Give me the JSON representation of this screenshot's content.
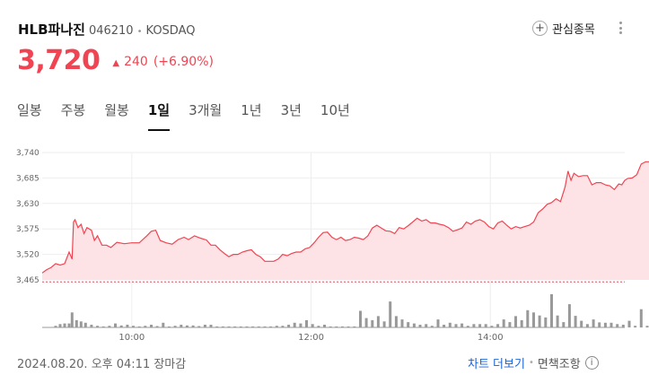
{
  "stock": {
    "name": "HLB파나진",
    "code": "046210",
    "separator": "•",
    "market": "KOSDAQ",
    "price": "3,720",
    "change_arrow": "▲",
    "change": "240",
    "change_pct": "(+6.90%)"
  },
  "watchlist": {
    "icon": "plus-icon",
    "label": "관심종목"
  },
  "tabs": [
    {
      "label": "일봉",
      "active": false
    },
    {
      "label": "주봉",
      "active": false
    },
    {
      "label": "월봉",
      "active": false
    },
    {
      "label": "1일",
      "active": true
    },
    {
      "label": "3개월",
      "active": false
    },
    {
      "label": "1년",
      "active": false
    },
    {
      "label": "3년",
      "active": false
    },
    {
      "label": "10년",
      "active": false
    }
  ],
  "chart_data": {
    "type": "area",
    "y_ticks": [
      "3,740",
      "3,685",
      "3,630",
      "3,575",
      "3,520",
      "3,465"
    ],
    "ylim": [
      3465,
      3740
    ],
    "x_ticks": [
      "10:00",
      "12:00",
      "14:00"
    ],
    "x_range_minutes": [
      540,
      930
    ],
    "prev_close": 3480,
    "price_points": [
      [
        540,
        3480
      ],
      [
        543,
        3487
      ],
      [
        546,
        3492
      ],
      [
        549,
        3500
      ],
      [
        552,
        3497
      ],
      [
        555,
        3500
      ],
      [
        558,
        3525
      ],
      [
        560,
        3510
      ],
      [
        561,
        3590
      ],
      [
        562,
        3595
      ],
      [
        564,
        3578
      ],
      [
        566,
        3585
      ],
      [
        568,
        3565
      ],
      [
        570,
        3578
      ],
      [
        573,
        3572
      ],
      [
        575,
        3550
      ],
      [
        577,
        3560
      ],
      [
        580,
        3540
      ],
      [
        583,
        3540
      ],
      [
        586,
        3535
      ],
      [
        590,
        3546
      ],
      [
        595,
        3543
      ],
      [
        600,
        3545
      ],
      [
        605,
        3545
      ],
      [
        610,
        3560
      ],
      [
        613,
        3570
      ],
      [
        616,
        3572
      ],
      [
        619,
        3550
      ],
      [
        623,
        3545
      ],
      [
        627,
        3542
      ],
      [
        631,
        3552
      ],
      [
        635,
        3557
      ],
      [
        638,
        3552
      ],
      [
        642,
        3560
      ],
      [
        646,
        3555
      ],
      [
        650,
        3551
      ],
      [
        653,
        3540
      ],
      [
        656,
        3540
      ],
      [
        659,
        3530
      ],
      [
        662,
        3522
      ],
      [
        665,
        3515
      ],
      [
        668,
        3520
      ],
      [
        671,
        3520
      ],
      [
        674,
        3525
      ],
      [
        677,
        3528
      ],
      [
        680,
        3530
      ],
      [
        683,
        3520
      ],
      [
        686,
        3515
      ],
      [
        689,
        3505
      ],
      [
        692,
        3505
      ],
      [
        695,
        3505
      ],
      [
        698,
        3510
      ],
      [
        701,
        3520
      ],
      [
        704,
        3517
      ],
      [
        707,
        3522
      ],
      [
        710,
        3525
      ],
      [
        713,
        3525
      ],
      [
        716,
        3532
      ],
      [
        719,
        3535
      ],
      [
        722,
        3545
      ],
      [
        725,
        3557
      ],
      [
        728,
        3567
      ],
      [
        731,
        3568
      ],
      [
        734,
        3557
      ],
      [
        737,
        3552
      ],
      [
        740,
        3557
      ],
      [
        743,
        3550
      ],
      [
        746,
        3552
      ],
      [
        749,
        3557
      ],
      [
        752,
        3555
      ],
      [
        755,
        3552
      ],
      [
        758,
        3560
      ],
      [
        761,
        3577
      ],
      [
        764,
        3583
      ],
      [
        767,
        3577
      ],
      [
        770,
        3571
      ],
      [
        773,
        3570
      ],
      [
        776,
        3565
      ],
      [
        779,
        3578
      ],
      [
        782,
        3575
      ],
      [
        785,
        3582
      ],
      [
        788,
        3590
      ],
      [
        791,
        3598
      ],
      [
        794,
        3592
      ],
      [
        797,
        3595
      ],
      [
        800,
        3588
      ],
      [
        803,
        3588
      ],
      [
        806,
        3585
      ],
      [
        809,
        3583
      ],
      [
        812,
        3578
      ],
      [
        815,
        3570
      ],
      [
        818,
        3573
      ],
      [
        821,
        3577
      ],
      [
        824,
        3590
      ],
      [
        827,
        3585
      ],
      [
        830,
        3592
      ],
      [
        833,
        3595
      ],
      [
        836,
        3590
      ],
      [
        839,
        3580
      ],
      [
        842,
        3575
      ],
      [
        845,
        3588
      ],
      [
        848,
        3592
      ],
      [
        851,
        3583
      ],
      [
        854,
        3575
      ],
      [
        857,
        3580
      ],
      [
        860,
        3577
      ],
      [
        863,
        3580
      ],
      [
        866,
        3583
      ],
      [
        869,
        3590
      ],
      [
        872,
        3610
      ],
      [
        875,
        3618
      ],
      [
        878,
        3628
      ],
      [
        881,
        3632
      ],
      [
        884,
        3640
      ],
      [
        887,
        3634
      ],
      [
        890,
        3665
      ],
      [
        892,
        3700
      ],
      [
        894,
        3680
      ],
      [
        896,
        3695
      ],
      [
        899,
        3688
      ],
      [
        902,
        3690
      ],
      [
        905,
        3690
      ],
      [
        908,
        3670
      ],
      [
        911,
        3675
      ],
      [
        914,
        3675
      ],
      [
        917,
        3670
      ],
      [
        920,
        3668
      ],
      [
        923,
        3660
      ],
      [
        926,
        3672
      ],
      [
        928,
        3670
      ],
      [
        930,
        3680
      ],
      [
        932,
        3684
      ],
      [
        935,
        3685
      ],
      [
        938,
        3692
      ],
      [
        941,
        3715
      ],
      [
        944,
        3720
      ],
      [
        947,
        3720
      ],
      [
        950,
        3720
      ]
    ],
    "volume_bars": [
      [
        549,
        0.05
      ],
      [
        552,
        0.1
      ],
      [
        555,
        0.12
      ],
      [
        558,
        0.12
      ],
      [
        560,
        0.45
      ],
      [
        563,
        0.22
      ],
      [
        566,
        0.18
      ],
      [
        569,
        0.14
      ],
      [
        573,
        0.08
      ],
      [
        577,
        0.05
      ],
      [
        581,
        0.03
      ],
      [
        585,
        0.05
      ],
      [
        589,
        0.12
      ],
      [
        593,
        0.06
      ],
      [
        597,
        0.08
      ],
      [
        601,
        0.05
      ],
      [
        605,
        0.03
      ],
      [
        609,
        0.05
      ],
      [
        613,
        0.08
      ],
      [
        617,
        0.04
      ],
      [
        621,
        0.14
      ],
      [
        625,
        0.03
      ],
      [
        629,
        0.05
      ],
      [
        633,
        0.08
      ],
      [
        637,
        0.06
      ],
      [
        641,
        0.06
      ],
      [
        645,
        0.04
      ],
      [
        649,
        0.08
      ],
      [
        653,
        0.08
      ],
      [
        657,
        0.03
      ],
      [
        661,
        0.03
      ],
      [
        665,
        0.03
      ],
      [
        669,
        0.03
      ],
      [
        673,
        0.03
      ],
      [
        677,
        0.03
      ],
      [
        681,
        0.03
      ],
      [
        685,
        0.03
      ],
      [
        689,
        0.03
      ],
      [
        693,
        0.03
      ],
      [
        697,
        0.05
      ],
      [
        701,
        0.05
      ],
      [
        705,
        0.08
      ],
      [
        709,
        0.14
      ],
      [
        713,
        0.12
      ],
      [
        717,
        0.22
      ],
      [
        721,
        0.1
      ],
      [
        725,
        0.05
      ],
      [
        729,
        0.08
      ],
      [
        733,
        0.03
      ],
      [
        737,
        0.03
      ],
      [
        741,
        0.03
      ],
      [
        745,
        0.03
      ],
      [
        749,
        0.03
      ],
      [
        753,
        0.5
      ],
      [
        757,
        0.28
      ],
      [
        761,
        0.22
      ],
      [
        765,
        0.34
      ],
      [
        769,
        0.18
      ],
      [
        773,
        0.78
      ],
      [
        777,
        0.34
      ],
      [
        781,
        0.24
      ],
      [
        785,
        0.16
      ],
      [
        789,
        0.12
      ],
      [
        793,
        0.08
      ],
      [
        797,
        0.1
      ],
      [
        801,
        0.05
      ],
      [
        805,
        0.24
      ],
      [
        809,
        0.08
      ],
      [
        813,
        0.14
      ],
      [
        817,
        0.1
      ],
      [
        821,
        0.12
      ],
      [
        825,
        0.05
      ],
      [
        829,
        0.1
      ],
      [
        833,
        0.1
      ],
      [
        837,
        0.1
      ],
      [
        841,
        0.05
      ],
      [
        845,
        0.1
      ],
      [
        849,
        0.24
      ],
      [
        853,
        0.16
      ],
      [
        857,
        0.34
      ],
      [
        861,
        0.22
      ],
      [
        865,
        0.52
      ],
      [
        869,
        0.45
      ],
      [
        873,
        0.36
      ],
      [
        877,
        0.3
      ],
      [
        881,
        1.0
      ],
      [
        885,
        0.36
      ],
      [
        889,
        0.16
      ],
      [
        893,
        0.7
      ],
      [
        897,
        0.35
      ],
      [
        901,
        0.2
      ],
      [
        905,
        0.1
      ],
      [
        909,
        0.24
      ],
      [
        913,
        0.15
      ],
      [
        917,
        0.14
      ],
      [
        921,
        0.14
      ],
      [
        925,
        0.1
      ],
      [
        929,
        0.08
      ],
      [
        933,
        0.2
      ],
      [
        937,
        0.05
      ],
      [
        941,
        0.55
      ],
      [
        945,
        0.05
      ]
    ],
    "colors": {
      "line": "#f04452",
      "fill": "#fde3e5",
      "grid": "#eeeeee",
      "prev_close": "#f04452",
      "volume": "#999999"
    }
  },
  "footer": {
    "timestamp": "2024.08.20. 오후 04:11 장마감",
    "more_chart": "차트 더보기",
    "separator": "•",
    "disclaimer": "면책조항",
    "info_icon": "info-icon"
  }
}
